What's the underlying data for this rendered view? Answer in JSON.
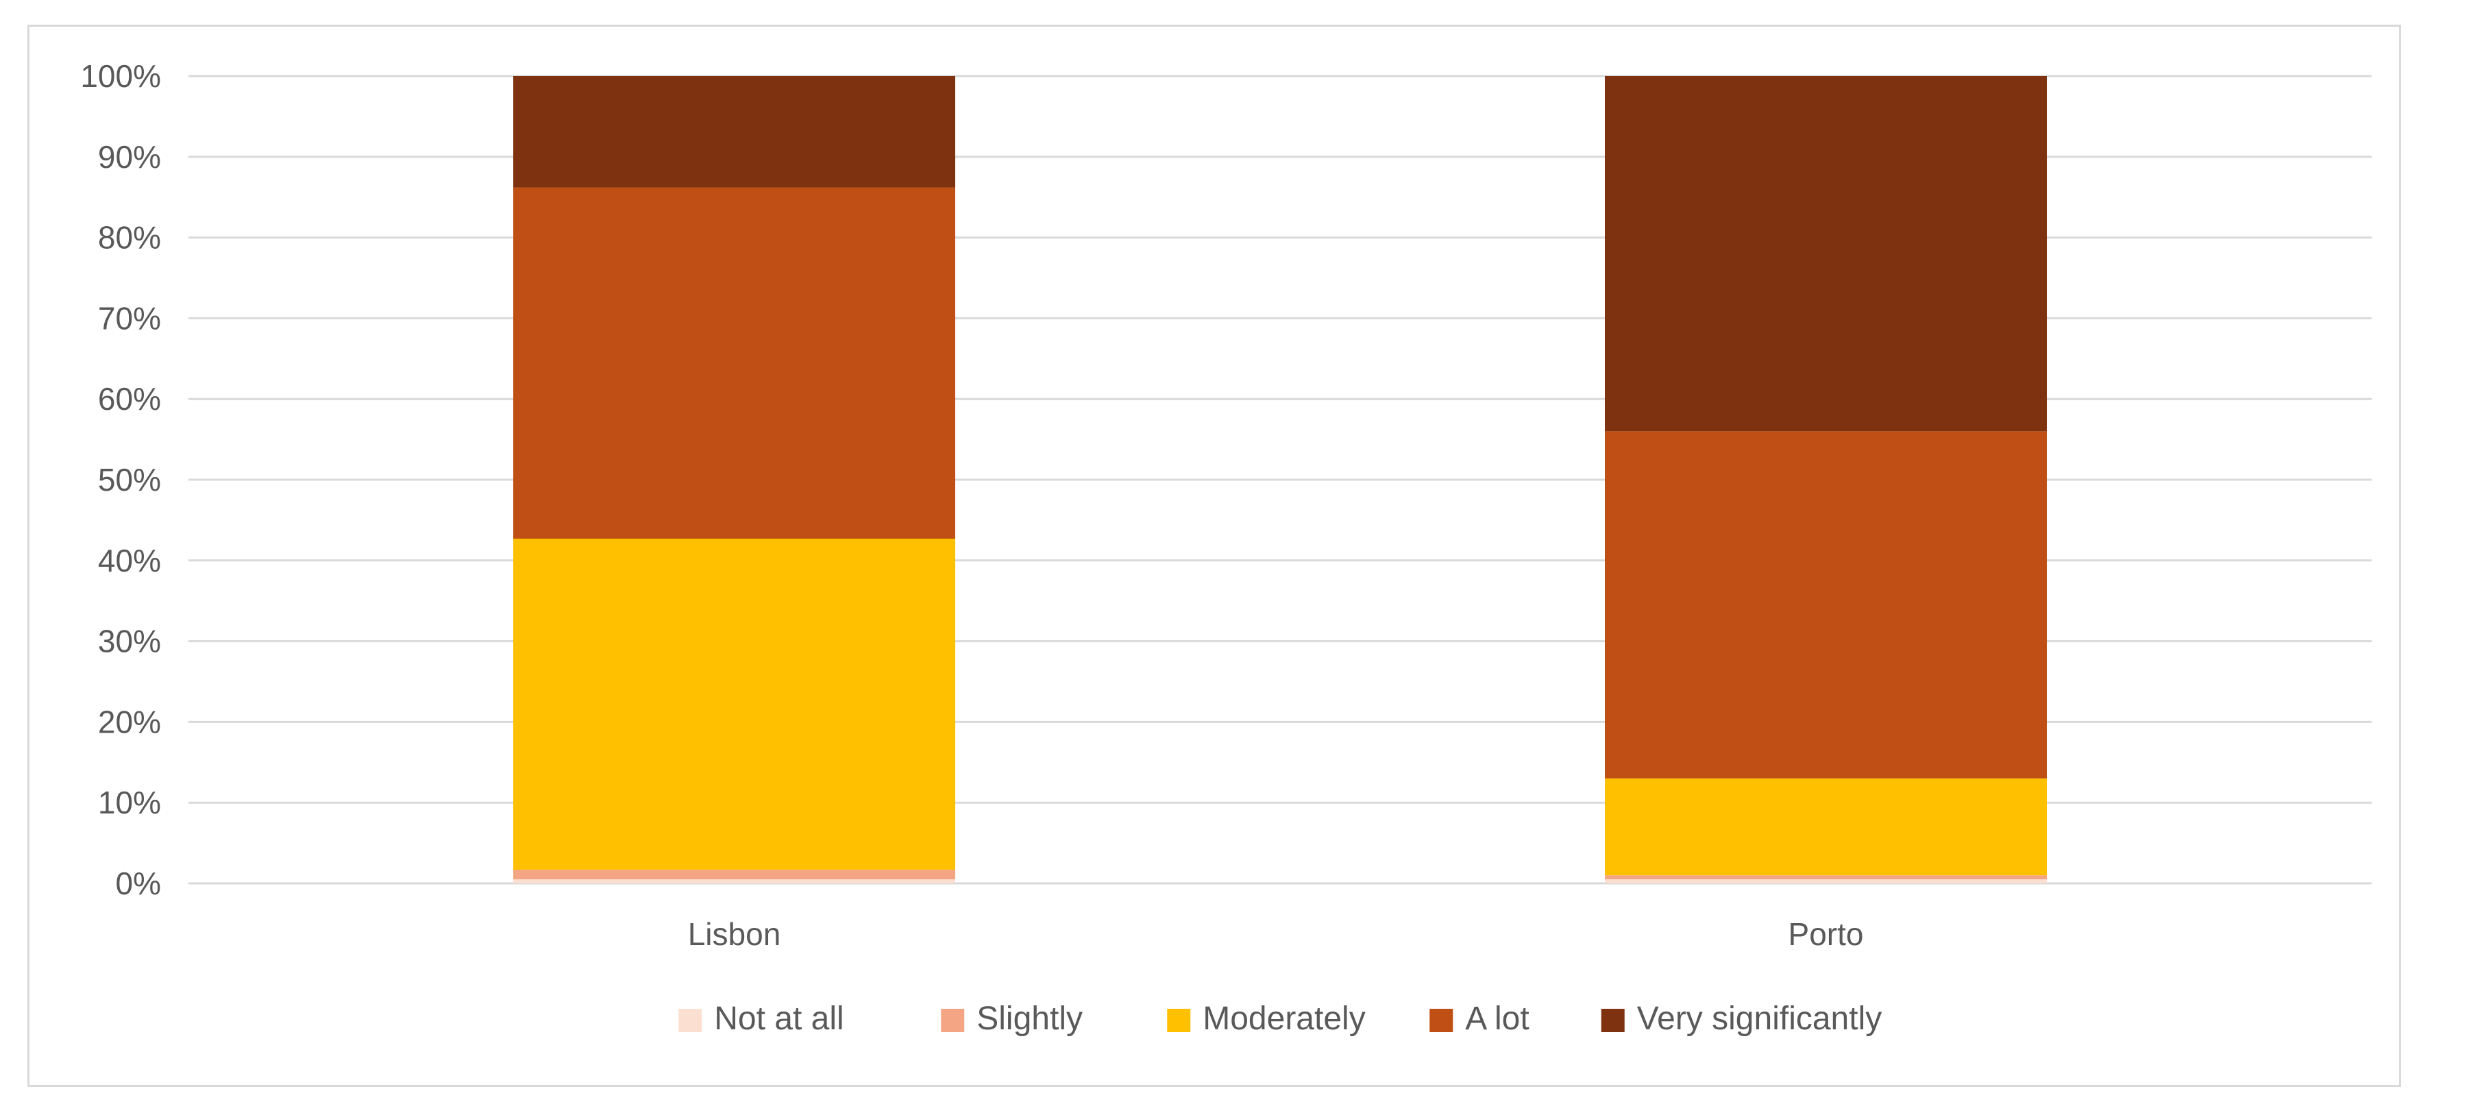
{
  "chart_data": {
    "type": "bar",
    "stacked": true,
    "percent_stacked": true,
    "categories": [
      "Lisbon",
      "Porto"
    ],
    "series": [
      {
        "name": "Not at all",
        "color": "#fbe0d2",
        "values": [
          0.5,
          0.5
        ]
      },
      {
        "name": "Slightly",
        "color": "#f4a583",
        "values": [
          1.2,
          0.5
        ]
      },
      {
        "name": "Moderately",
        "color": "#ffc000",
        "values": [
          41.0,
          12.0
        ]
      },
      {
        "name": "A lot",
        "color": "#c04f15",
        "values": [
          43.5,
          43.0
        ]
      },
      {
        "name": "Very significantly",
        "color": "#7f3210",
        "values": [
          13.8,
          44.0
        ]
      }
    ],
    "y_ticks": [
      "0%",
      "10%",
      "20%",
      "30%",
      "40%",
      "50%",
      "60%",
      "70%",
      "80%",
      "90%",
      "100%"
    ],
    "ylim": [
      0,
      100
    ],
    "grid": true,
    "legend_position": "bottom",
    "title": "",
    "xlabel": "",
    "ylabel": ""
  },
  "style": {
    "gridline_color": "#d9d9d9",
    "axis_text_color": "#595959",
    "frame_border_color": "#d9d9d9"
  }
}
